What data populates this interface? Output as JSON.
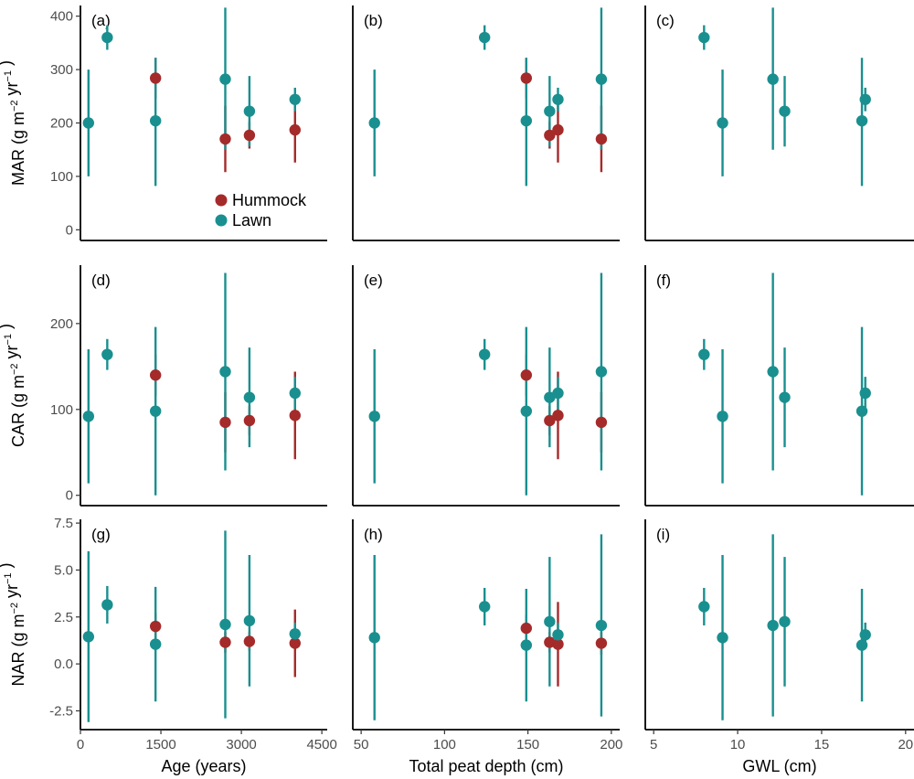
{
  "colors": {
    "Hummock": "#a52a2a",
    "Lawn": "#1a8f8f"
  },
  "legend": {
    "entries": [
      "Hummock",
      "Lawn"
    ],
    "placement": "inside panel (a), bottom"
  },
  "chart_data": {
    "type": "scatter",
    "note_style": "points with vertical error bars, 3x3 faceted grid",
    "columns": [
      {
        "xlabel": "Age (years)",
        "xlim": [
          0,
          4600
        ],
        "xticks": [
          0,
          1500,
          3000,
          4500
        ]
      },
      {
        "xlabel": "Total peat depth (cm)",
        "xlim": [
          45,
          205
        ],
        "xticks": [
          50,
          100,
          150,
          200
        ]
      },
      {
        "xlabel": "GWL (cm)",
        "xlim": [
          4.5,
          20.5
        ],
        "xticks": [
          5,
          10,
          15,
          20
        ]
      }
    ],
    "rows": [
      {
        "ylabel_main": "MAR (g m",
        "ylabel_sup1": "−2",
        "ylabel_mid": " yr",
        "ylabel_sup2": "−1",
        "ylabel_end": ")",
        "ylim": [
          -20,
          420
        ],
        "yticks": [
          0,
          100,
          200,
          300,
          400
        ],
        "panels": [
          {
            "label": "(a)",
            "points": [
              {
                "x": 150,
                "y": 200,
                "lo": 100,
                "hi": 300,
                "group": "Lawn"
              },
              {
                "x": 500,
                "y": 360,
                "lo": 337,
                "hi": 383,
                "group": "Lawn"
              },
              {
                "x": 1400,
                "y": 284,
                "lo": 246,
                "hi": 322,
                "group": "Hummock"
              },
              {
                "x": 1400,
                "y": 204,
                "lo": 82,
                "hi": 322,
                "group": "Lawn"
              },
              {
                "x": 2700,
                "y": 170,
                "lo": 108,
                "hi": 232,
                "group": "Hummock"
              },
              {
                "x": 2700,
                "y": 282,
                "lo": 150,
                "hi": 416,
                "group": "Lawn"
              },
              {
                "x": 3150,
                "y": 177,
                "lo": 152,
                "hi": 202,
                "group": "Hummock"
              },
              {
                "x": 3150,
                "y": 222,
                "lo": 156,
                "hi": 288,
                "group": "Lawn"
              },
              {
                "x": 4000,
                "y": 187,
                "lo": 126,
                "hi": 248,
                "group": "Hummock"
              },
              {
                "x": 4000,
                "y": 244,
                "lo": 222,
                "hi": 266,
                "group": "Lawn"
              }
            ]
          },
          {
            "label": "(b)",
            "points": [
              {
                "x": 58,
                "y": 200,
                "lo": 100,
                "hi": 300,
                "group": "Lawn"
              },
              {
                "x": 124,
                "y": 360,
                "lo": 337,
                "hi": 383,
                "group": "Lawn"
              },
              {
                "x": 149,
                "y": 284,
                "lo": 246,
                "hi": 322,
                "group": "Hummock"
              },
              {
                "x": 149,
                "y": 204,
                "lo": 82,
                "hi": 322,
                "group": "Lawn"
              },
              {
                "x": 163,
                "y": 177,
                "lo": 152,
                "hi": 202,
                "group": "Hummock"
              },
              {
                "x": 163,
                "y": 222,
                "lo": 156,
                "hi": 288,
                "group": "Lawn"
              },
              {
                "x": 168,
                "y": 187,
                "lo": 126,
                "hi": 248,
                "group": "Hummock"
              },
              {
                "x": 168,
                "y": 244,
                "lo": 222,
                "hi": 266,
                "group": "Lawn"
              },
              {
                "x": 194,
                "y": 170,
                "lo": 108,
                "hi": 232,
                "group": "Hummock"
              },
              {
                "x": 194,
                "y": 282,
                "lo": 150,
                "hi": 416,
                "group": "Lawn"
              }
            ]
          },
          {
            "label": "(c)",
            "points": [
              {
                "x": 8,
                "y": 360,
                "lo": 337,
                "hi": 383,
                "group": "Lawn"
              },
              {
                "x": 9.1,
                "y": 200,
                "lo": 100,
                "hi": 300,
                "group": "Lawn"
              },
              {
                "x": 12.1,
                "y": 282,
                "lo": 150,
                "hi": 416,
                "group": "Lawn"
              },
              {
                "x": 12.8,
                "y": 222,
                "lo": 156,
                "hi": 288,
                "group": "Lawn"
              },
              {
                "x": 17.4,
                "y": 204,
                "lo": 82,
                "hi": 322,
                "group": "Lawn"
              },
              {
                "x": 17.6,
                "y": 244,
                "lo": 222,
                "hi": 266,
                "group": "Lawn"
              }
            ]
          }
        ]
      },
      {
        "ylabel_main": "CAR (g m",
        "ylabel_sup1": "−2",
        "ylabel_mid": " yr",
        "ylabel_sup2": "−1",
        "ylabel_end": ")",
        "ylim": [
          -12,
          268
        ],
        "yticks": [
          0,
          100,
          200
        ],
        "panels": [
          {
            "label": "(d)",
            "points": [
              {
                "x": 150,
                "y": 92,
                "lo": 14,
                "hi": 170,
                "group": "Lawn"
              },
              {
                "x": 500,
                "y": 164,
                "lo": 146,
                "hi": 182,
                "group": "Lawn"
              },
              {
                "x": 1400,
                "y": 140,
                "lo": 116,
                "hi": 164,
                "group": "Hummock"
              },
              {
                "x": 1400,
                "y": 98,
                "lo": 0,
                "hi": 196,
                "group": "Lawn"
              },
              {
                "x": 2700,
                "y": 85,
                "lo": 50,
                "hi": 120,
                "group": "Hummock"
              },
              {
                "x": 2700,
                "y": 144,
                "lo": 29,
                "hi": 259,
                "group": "Lawn"
              },
              {
                "x": 3150,
                "y": 87,
                "lo": 70,
                "hi": 104,
                "group": "Hummock"
              },
              {
                "x": 3150,
                "y": 114,
                "lo": 56,
                "hi": 172,
                "group": "Lawn"
              },
              {
                "x": 4000,
                "y": 93,
                "lo": 42,
                "hi": 144,
                "group": "Hummock"
              },
              {
                "x": 4000,
                "y": 119,
                "lo": 100,
                "hi": 138,
                "group": "Lawn"
              }
            ]
          },
          {
            "label": "(e)",
            "points": [
              {
                "x": 58,
                "y": 92,
                "lo": 14,
                "hi": 170,
                "group": "Lawn"
              },
              {
                "x": 124,
                "y": 164,
                "lo": 146,
                "hi": 182,
                "group": "Lawn"
              },
              {
                "x": 149,
                "y": 140,
                "lo": 116,
                "hi": 164,
                "group": "Hummock"
              },
              {
                "x": 149,
                "y": 98,
                "lo": 0,
                "hi": 196,
                "group": "Lawn"
              },
              {
                "x": 163,
                "y": 87,
                "lo": 70,
                "hi": 104,
                "group": "Hummock"
              },
              {
                "x": 163,
                "y": 114,
                "lo": 56,
                "hi": 172,
                "group": "Lawn"
              },
              {
                "x": 168,
                "y": 93,
                "lo": 42,
                "hi": 144,
                "group": "Hummock"
              },
              {
                "x": 168,
                "y": 119,
                "lo": 100,
                "hi": 138,
                "group": "Lawn"
              },
              {
                "x": 194,
                "y": 85,
                "lo": 50,
                "hi": 120,
                "group": "Hummock"
              },
              {
                "x": 194,
                "y": 144,
                "lo": 29,
                "hi": 259,
                "group": "Lawn"
              }
            ]
          },
          {
            "label": "(f)",
            "points": [
              {
                "x": 8,
                "y": 164,
                "lo": 146,
                "hi": 182,
                "group": "Lawn"
              },
              {
                "x": 9.1,
                "y": 92,
                "lo": 14,
                "hi": 170,
                "group": "Lawn"
              },
              {
                "x": 12.1,
                "y": 144,
                "lo": 29,
                "hi": 259,
                "group": "Lawn"
              },
              {
                "x": 12.8,
                "y": 114,
                "lo": 56,
                "hi": 172,
                "group": "Lawn"
              },
              {
                "x": 17.4,
                "y": 98,
                "lo": 0,
                "hi": 196,
                "group": "Lawn"
              },
              {
                "x": 17.6,
                "y": 119,
                "lo": 100,
                "hi": 138,
                "group": "Lawn"
              }
            ]
          }
        ]
      },
      {
        "ylabel_main": "NAR (g m",
        "ylabel_sup1": "−2",
        "ylabel_mid": " yr",
        "ylabel_sup2": "−1",
        "ylabel_end": ")",
        "ylim": [
          -3.5,
          7.7
        ],
        "yticks": [
          -2.5,
          0.0,
          2.5,
          5.0,
          7.5
        ],
        "ytick_labels": [
          "-2.5",
          "0.0",
          "2.5",
          "5.0",
          "7.5"
        ],
        "panels": [
          {
            "label": "(g)",
            "points": [
              {
                "x": 150,
                "y": 1.45,
                "lo": -3.1,
                "hi": 6.0,
                "group": "Lawn"
              },
              {
                "x": 500,
                "y": 3.15,
                "lo": 2.15,
                "hi": 4.15,
                "group": "Lawn"
              },
              {
                "x": 1400,
                "y": 2.0,
                "lo": 1.3,
                "hi": 2.7,
                "group": "Hummock"
              },
              {
                "x": 1400,
                "y": 1.05,
                "lo": -2.0,
                "hi": 4.1,
                "group": "Lawn"
              },
              {
                "x": 2700,
                "y": 1.15,
                "lo": 0.6,
                "hi": 1.7,
                "group": "Hummock"
              },
              {
                "x": 2700,
                "y": 2.1,
                "lo": -2.9,
                "hi": 7.1,
                "group": "Lawn"
              },
              {
                "x": 3150,
                "y": 1.2,
                "lo": 0.7,
                "hi": 1.7,
                "group": "Hummock"
              },
              {
                "x": 3150,
                "y": 2.3,
                "lo": -1.2,
                "hi": 5.8,
                "group": "Lawn"
              },
              {
                "x": 4000,
                "y": 1.1,
                "lo": -0.7,
                "hi": 2.9,
                "group": "Hummock"
              },
              {
                "x": 4000,
                "y": 1.6,
                "lo": 1.0,
                "hi": 2.2,
                "group": "Lawn"
              }
            ]
          },
          {
            "label": "(h)",
            "points": [
              {
                "x": 58,
                "y": 1.4,
                "lo": -3.0,
                "hi": 5.8,
                "group": "Lawn"
              },
              {
                "x": 124,
                "y": 3.05,
                "lo": 2.05,
                "hi": 4.05,
                "group": "Lawn"
              },
              {
                "x": 149,
                "y": 1.9,
                "lo": 1.2,
                "hi": 2.6,
                "group": "Hummock"
              },
              {
                "x": 149,
                "y": 1.0,
                "lo": -2.0,
                "hi": 4.0,
                "group": "Lawn"
              },
              {
                "x": 163,
                "y": 1.15,
                "lo": 0.6,
                "hi": 1.7,
                "group": "Hummock"
              },
              {
                "x": 163,
                "y": 2.25,
                "lo": -1.2,
                "hi": 5.7,
                "group": "Lawn"
              },
              {
                "x": 168,
                "y": 1.05,
                "lo": -1.2,
                "hi": 3.3,
                "group": "Hummock"
              },
              {
                "x": 168,
                "y": 1.55,
                "lo": 0.9,
                "hi": 2.2,
                "group": "Lawn"
              },
              {
                "x": 194,
                "y": 1.1,
                "lo": 0.5,
                "hi": 1.7,
                "group": "Hummock"
              },
              {
                "x": 194,
                "y": 2.05,
                "lo": -2.8,
                "hi": 6.9,
                "group": "Lawn"
              }
            ]
          },
          {
            "label": "(i)",
            "points": [
              {
                "x": 8,
                "y": 3.05,
                "lo": 2.05,
                "hi": 4.05,
                "group": "Lawn"
              },
              {
                "x": 9.1,
                "y": 1.4,
                "lo": -3.0,
                "hi": 5.8,
                "group": "Lawn"
              },
              {
                "x": 12.1,
                "y": 2.05,
                "lo": -2.8,
                "hi": 6.9,
                "group": "Lawn"
              },
              {
                "x": 12.8,
                "y": 2.25,
                "lo": -1.2,
                "hi": 5.7,
                "group": "Lawn"
              },
              {
                "x": 17.4,
                "y": 1.0,
                "lo": -2.0,
                "hi": 4.0,
                "group": "Lawn"
              },
              {
                "x": 17.6,
                "y": 1.55,
                "lo": 0.9,
                "hi": 2.2,
                "group": "Lawn"
              }
            ]
          }
        ]
      }
    ]
  }
}
